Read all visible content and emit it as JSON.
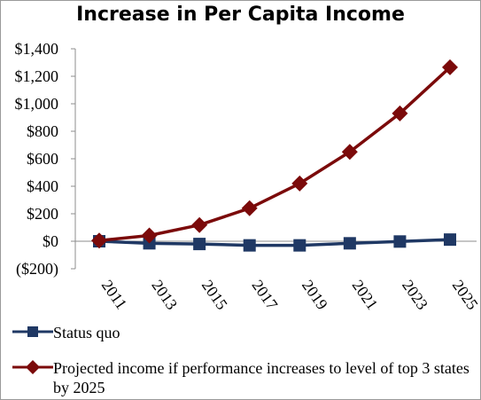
{
  "chart_data": {
    "type": "line",
    "title": "Increase in Per Capita Income",
    "xlabel": "",
    "ylabel": "",
    "categories": [
      "2011",
      "2013",
      "2015",
      "2017",
      "2019",
      "2021",
      "2023",
      "2025"
    ],
    "y_tick_labels": [
      "$1,400",
      "$1,200",
      "$1,000",
      "$800",
      "$600",
      "$400",
      "$200",
      "$0",
      "($200)"
    ],
    "ylim": [
      -200,
      1400
    ],
    "grid": false,
    "legend_position": "bottom",
    "series": [
      {
        "name": "Status quo",
        "color": "#1F3864",
        "marker": "square",
        "values": [
          0,
          -15,
          -20,
          -30,
          -30,
          -15,
          -2,
          12
        ]
      },
      {
        "name": "Projected income if performance increases to level of top 3 states by 2025",
        "color": "#7B0A0A",
        "marker": "diamond",
        "values": [
          5,
          42,
          118,
          240,
          420,
          650,
          930,
          1265
        ]
      }
    ]
  }
}
